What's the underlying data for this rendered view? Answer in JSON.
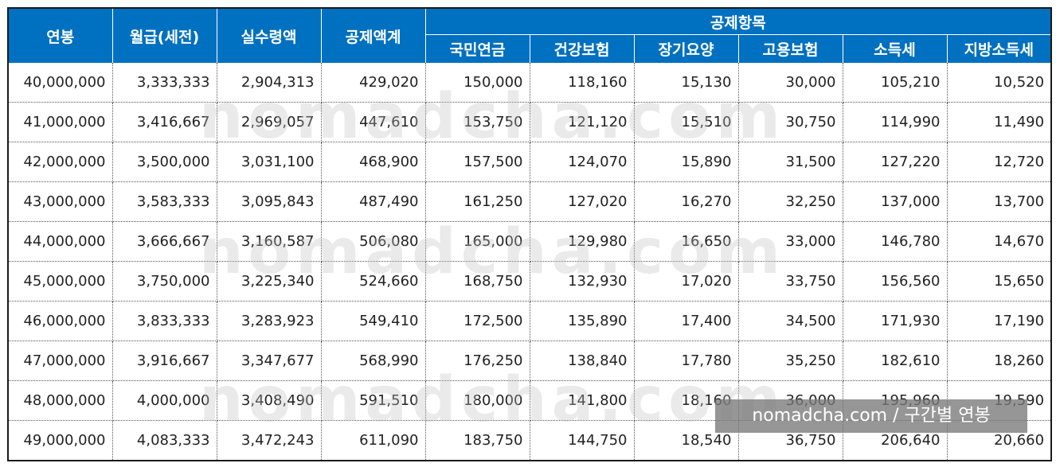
{
  "header": {
    "main": [
      "연봉",
      "월급(세전)",
      "실수령액",
      "공제액계"
    ],
    "group": "공제항목",
    "sub": [
      "국민연금",
      "건강보험",
      "장기요양",
      "고용보험",
      "소득세",
      "지방소득세"
    ]
  },
  "rows": [
    [
      "40,000,000",
      "3,333,333",
      "2,904,313",
      "429,020",
      "150,000",
      "118,160",
      "15,130",
      "30,000",
      "105,210",
      "10,520"
    ],
    [
      "41,000,000",
      "3,416,667",
      "2,969,057",
      "447,610",
      "153,750",
      "121,120",
      "15,510",
      "30,750",
      "114,990",
      "11,490"
    ],
    [
      "42,000,000",
      "3,500,000",
      "3,031,100",
      "468,900",
      "157,500",
      "124,070",
      "15,890",
      "31,500",
      "127,220",
      "12,720"
    ],
    [
      "43,000,000",
      "3,583,333",
      "3,095,843",
      "487,490",
      "161,250",
      "127,020",
      "16,270",
      "32,250",
      "137,000",
      "13,700"
    ],
    [
      "44,000,000",
      "3,666,667",
      "3,160,587",
      "506,080",
      "165,000",
      "129,980",
      "16,650",
      "33,000",
      "146,780",
      "14,670"
    ],
    [
      "45,000,000",
      "3,750,000",
      "3,225,340",
      "524,660",
      "168,750",
      "132,930",
      "17,020",
      "33,750",
      "156,560",
      "15,650"
    ],
    [
      "46,000,000",
      "3,833,333",
      "3,283,923",
      "549,410",
      "172,500",
      "135,890",
      "17,400",
      "34,500",
      "171,930",
      "17,190"
    ],
    [
      "47,000,000",
      "3,916,667",
      "3,347,677",
      "568,990",
      "176,250",
      "138,840",
      "17,780",
      "35,250",
      "182,610",
      "18,260"
    ],
    [
      "48,000,000",
      "4,000,000",
      "3,408,490",
      "591,510",
      "180,000",
      "141,800",
      "18,160",
      "36,000",
      "195,960",
      "19,590"
    ],
    [
      "49,000,000",
      "4,083,333",
      "3,472,243",
      "611,090",
      "183,750",
      "144,750",
      "18,540",
      "36,750",
      "206,640",
      "20,660"
    ]
  ],
  "watermark": "nomadcha.com",
  "caption": "nomadcha.com / 구간별 연봉",
  "colors": {
    "header_bg": "#0070c0",
    "header_text": "#ffffff",
    "cell_text": "#222222"
  }
}
